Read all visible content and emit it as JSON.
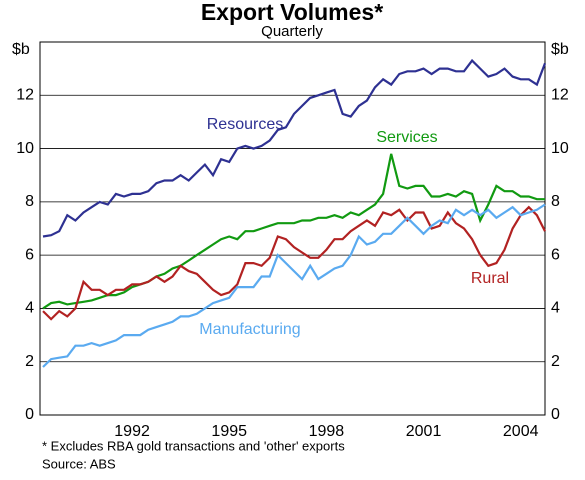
{
  "chart_data": {
    "type": "line",
    "title": "Export Volumes*",
    "subtitle": "Quarterly",
    "y_label": "$b",
    "y2_label": "$b",
    "footnote": "*    Excludes RBA gold transactions and 'other' exports",
    "source": "Source: ABS",
    "categories": [
      null,
      null,
      null,
      null,
      null,
      null,
      null,
      null,
      null,
      null,
      null,
      "1992",
      null,
      null,
      null,
      null,
      null,
      null,
      null,
      null,
      null,
      null,
      null,
      "1995",
      null,
      null,
      null,
      null,
      null,
      null,
      null,
      null,
      null,
      null,
      null,
      "1998",
      null,
      null,
      null,
      null,
      null,
      null,
      null,
      null,
      null,
      null,
      null,
      "2001",
      null,
      null,
      null,
      null,
      null,
      null,
      null,
      null,
      null,
      null,
      null,
      "2004",
      null,
      null,
      null
    ],
    "ylim": [
      0,
      14
    ],
    "yticks": [
      0,
      2,
      4,
      6,
      8,
      10,
      12
    ],
    "y2lim": [
      0,
      14
    ],
    "y2ticks": [
      0,
      2,
      4,
      6,
      8,
      10,
      12
    ],
    "grid": true,
    "series": [
      {
        "name": "Resources",
        "color": "#2e3192",
        "values": [
          6.7,
          6.75,
          6.9,
          7.5,
          7.3,
          7.6,
          7.8,
          8.0,
          7.9,
          8.3,
          8.2,
          8.3,
          8.3,
          8.4,
          8.7,
          8.8,
          8.8,
          9.0,
          8.8,
          9.1,
          9.4,
          9.0,
          9.6,
          9.5,
          10.0,
          10.1,
          10.0,
          10.1,
          10.3,
          10.7,
          10.8,
          11.3,
          11.6,
          11.9,
          12.0,
          12.1,
          12.2,
          11.3,
          11.2,
          11.6,
          11.8,
          12.3,
          12.6,
          12.4,
          12.8,
          12.9,
          12.9,
          13.0,
          12.8,
          13.0,
          13.0,
          12.9,
          12.9,
          13.3,
          13.0,
          12.7,
          12.8,
          13.0,
          12.7,
          12.6,
          12.6,
          12.4,
          13.2
        ]
      },
      {
        "name": "Services",
        "color": "#119a11",
        "values": [
          4.0,
          4.2,
          4.25,
          4.15,
          4.2,
          4.25,
          4.3,
          4.4,
          4.5,
          4.5,
          4.6,
          4.8,
          4.9,
          5.0,
          5.2,
          5.3,
          5.5,
          5.6,
          5.8,
          6.0,
          6.2,
          6.4,
          6.6,
          6.7,
          6.6,
          6.9,
          6.9,
          7.0,
          7.1,
          7.2,
          7.2,
          7.2,
          7.3,
          7.3,
          7.4,
          7.4,
          7.5,
          7.4,
          7.6,
          7.5,
          7.7,
          7.9,
          8.3,
          9.8,
          8.6,
          8.5,
          8.6,
          8.6,
          8.2,
          8.2,
          8.3,
          8.2,
          8.4,
          8.3,
          7.3,
          7.9,
          8.6,
          8.4,
          8.4,
          8.2,
          8.2,
          8.1,
          8.1
        ]
      },
      {
        "name": "Rural",
        "color": "#b22222",
        "values": [
          3.9,
          3.6,
          3.9,
          3.7,
          4.0,
          5.0,
          4.7,
          4.7,
          4.5,
          4.7,
          4.7,
          4.9,
          4.9,
          5.0,
          5.2,
          5.0,
          5.2,
          5.6,
          5.4,
          5.3,
          5.0,
          4.7,
          4.5,
          4.6,
          4.9,
          5.7,
          5.7,
          5.6,
          5.9,
          6.7,
          6.6,
          6.3,
          6.1,
          5.9,
          5.9,
          6.2,
          6.6,
          6.6,
          6.9,
          7.1,
          7.3,
          7.1,
          7.6,
          7.5,
          7.7,
          7.3,
          7.6,
          7.6,
          7.0,
          7.1,
          7.6,
          7.2,
          7.0,
          6.6,
          6.0,
          5.6,
          5.7,
          6.2,
          7.0,
          7.5,
          7.8,
          7.5,
          6.9
        ]
      },
      {
        "name": "Manufacturing",
        "color": "#5aaaf0",
        "values": [
          1.8,
          2.1,
          2.15,
          2.2,
          2.6,
          2.6,
          2.7,
          2.6,
          2.7,
          2.8,
          3.0,
          3.0,
          3.0,
          3.2,
          3.3,
          3.4,
          3.5,
          3.7,
          3.7,
          3.8,
          4.0,
          4.2,
          4.3,
          4.4,
          4.8,
          4.8,
          4.8,
          5.2,
          5.2,
          6.0,
          5.7,
          5.4,
          5.1,
          5.6,
          5.1,
          5.3,
          5.5,
          5.6,
          6.0,
          6.7,
          6.4,
          6.5,
          6.8,
          6.8,
          7.1,
          7.4,
          7.1,
          6.8,
          7.1,
          7.3,
          7.2,
          7.7,
          7.5,
          7.7,
          7.5,
          7.7,
          7.4,
          7.6,
          7.8,
          7.5,
          7.6,
          7.7,
          7.9
        ]
      }
    ]
  }
}
